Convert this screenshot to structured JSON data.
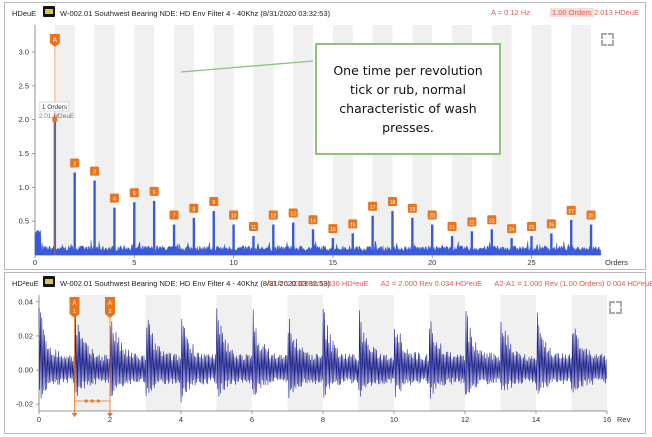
{
  "top_panel": {
    "y_unit": "HDeuE",
    "title": "W-002.01 Southwest Bearing NDE: HD Env Filter 4 - 40Khz (8/31/2020 03:32:53)",
    "cursor_readouts": [
      "A = 0.12 Hz",
      "1.00 Orders",
      "2.013 HDeuE"
    ],
    "x_unit": "Orders",
    "marker_label": "A",
    "tooltip_lines": [
      "1 Orders",
      "2.01 HDeuE"
    ],
    "y_ticks": [
      "3.0",
      "2.5",
      "2.0",
      "1.5",
      "1.0",
      "0.5"
    ],
    "x_ticks": [
      "0",
      "5",
      "10",
      "15",
      "20",
      "25"
    ],
    "harmonic_labels": [
      "2",
      "3",
      "4",
      "5",
      "6",
      "7",
      "8",
      "9",
      "10",
      "11",
      "12",
      "13",
      "14",
      "15",
      "16",
      "17",
      "18",
      "19",
      "20",
      "21",
      "22",
      "23",
      "24",
      "25",
      "26",
      "27",
      "28"
    ],
    "icon": "expand-icon"
  },
  "bottom_panel": {
    "y_unit": "HD²euE",
    "title": "W-002.01 Southwest Bearing NDE: HD Env Filter 4 - 40Khz (8/31/2020 03:32:53)",
    "cursor_readouts": [
      "A1 = 1.000 Rev  0.030 HD²euE",
      "A2 = 2.000 Rev  0.034 HD²euE",
      "A2-A1 = 1.000 Rev  (1.00 Orders)  0.004 HD²euE"
    ],
    "x_unit": "Rev",
    "marker_labels": [
      "A\n1",
      "A\n2"
    ],
    "y_ticks": [
      "0.04",
      "0.02",
      "0.00",
      "-0.02"
    ],
    "x_ticks": [
      "0",
      "2",
      "4",
      "6",
      "8",
      "10",
      "12",
      "14",
      "16"
    ],
    "icon": "expand-icon"
  },
  "annotation": {
    "text": "One time per revolution tick or rub, normal characteristic of wash presses."
  },
  "colors": {
    "spectrum": "#3a5bd9",
    "waveform": "#1a1f8c",
    "marker": "#e8741e",
    "cursor_text": "#e05a4a",
    "annotation_border": "#8fc17f"
  },
  "chart_data": [
    {
      "type": "bar",
      "x": [
        1,
        2,
        3,
        4,
        5,
        6,
        7,
        8,
        9,
        10,
        11,
        12,
        13,
        14,
        15,
        16,
        17,
        18,
        19,
        20,
        21,
        22,
        23,
        24,
        25,
        26,
        27,
        28
      ],
      "values": [
        2.01,
        1.22,
        1.1,
        0.7,
        0.78,
        0.8,
        0.45,
        0.55,
        0.65,
        0.45,
        0.28,
        0.45,
        0.48,
        0.38,
        0.25,
        0.32,
        0.58,
        0.65,
        0.55,
        0.45,
        0.28,
        0.35,
        0.38,
        0.25,
        0.28,
        0.32,
        0.52,
        0.45
      ],
      "xlabel": "Orders",
      "ylabel": "HDeuE",
      "xlim": [
        0,
        28.5
      ],
      "ylim": [
        0,
        3.4
      ],
      "grid": true
    },
    {
      "type": "line",
      "x_range": [
        0,
        16
      ],
      "impact_period_rev": 1.0,
      "impact_peak": 0.036,
      "baseline_band": [
        -0.01,
        0.008
      ],
      "xlabel": "Rev",
      "ylabel": "HD²euE",
      "ylim": [
        -0.024,
        0.044
      ],
      "cursors": [
        1.0,
        2.0
      ]
    }
  ]
}
